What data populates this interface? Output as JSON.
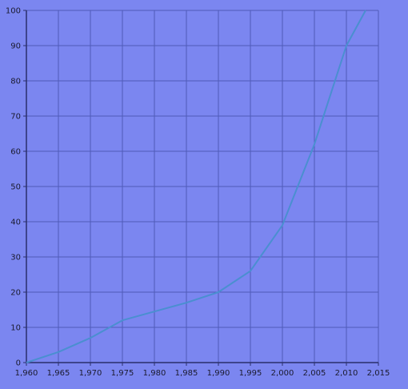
{
  "chart_data": {
    "type": "line",
    "title": "",
    "xlabel": "",
    "ylabel": "",
    "xlim": [
      1960,
      2015
    ],
    "ylim": [
      0,
      100
    ],
    "x_ticks": [
      1960,
      1965,
      1970,
      1975,
      1980,
      1985,
      1990,
      1995,
      2000,
      2005,
      2010,
      2015
    ],
    "x_tick_labels": [
      "1,960",
      "1,965",
      "1,970",
      "1,975",
      "1,980",
      "1,985",
      "1,990",
      "1,995",
      "2,000",
      "2,005",
      "2,010",
      "2,015"
    ],
    "y_ticks": [
      0,
      10,
      20,
      30,
      40,
      50,
      60,
      70,
      80,
      90,
      100
    ],
    "y_tick_labels": [
      "0",
      "10",
      "20",
      "30",
      "40",
      "50",
      "60",
      "70",
      "80",
      "90",
      "100"
    ],
    "grid": true,
    "legend": "none",
    "series": [
      {
        "x": [
          1960,
          1965,
          1970,
          1975,
          1980,
          1985,
          1990,
          1995,
          2000,
          2005,
          2010,
          2013
        ],
        "y": [
          0,
          3,
          7,
          12,
          14.5,
          17,
          20,
          26,
          39,
          62,
          90,
          100
        ]
      }
    ],
    "colors": {
      "background": "#7b86f0",
      "grid": "#4f5bb8",
      "axis": "#2a2f6a",
      "line": "#4a8fd0"
    }
  }
}
